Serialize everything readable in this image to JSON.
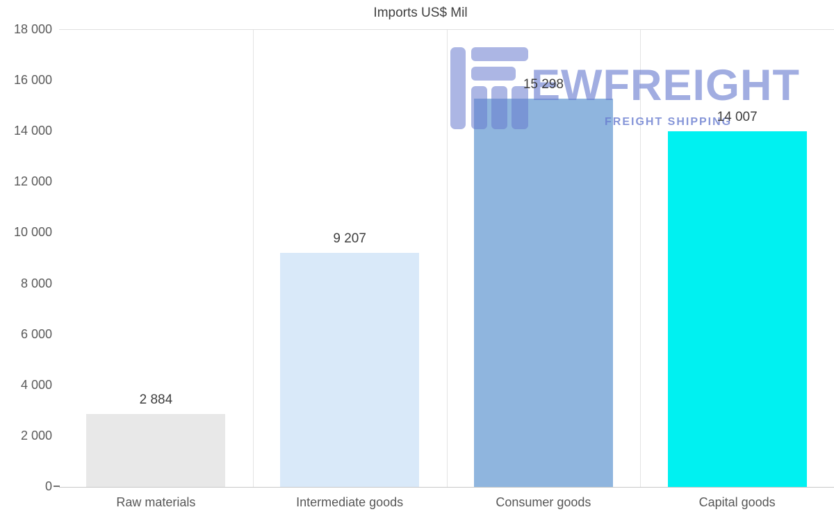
{
  "chart_data": {
    "type": "bar",
    "title": "Imports US$ Mil",
    "categories": [
      "Raw materials",
      "Intermediate goods",
      "Consumer goods",
      "Capital goods"
    ],
    "values": [
      2884,
      9207,
      15298,
      14007
    ],
    "value_labels": [
      "2 884",
      "9 207",
      "15 298",
      "14 007"
    ],
    "bar_colors": [
      "#e8e8e8",
      "#d9e9f9",
      "#8fb5de",
      "#00f1f1"
    ],
    "ylim": [
      0,
      18000
    ],
    "ytick_step": 2000,
    "ytick_labels": [
      "0",
      "2 000",
      "4 000",
      "6 000",
      "8 000",
      "10 000",
      "12 000",
      "14 000",
      "16 000",
      "18 000"
    ],
    "xlabel": "",
    "ylabel": "",
    "grid": "vertical-band-dividers",
    "legend": "none"
  },
  "watermark": {
    "name": "EWFREIGHT",
    "subtitle": "FREIGHT SHIPPING",
    "color": "#677ace"
  },
  "colors": {
    "title_text": "#3f3f3f",
    "axis_text": "#595959",
    "gridline": "#e3e3e3",
    "value_text": "#3d3d3d",
    "background": "#ffffff"
  }
}
